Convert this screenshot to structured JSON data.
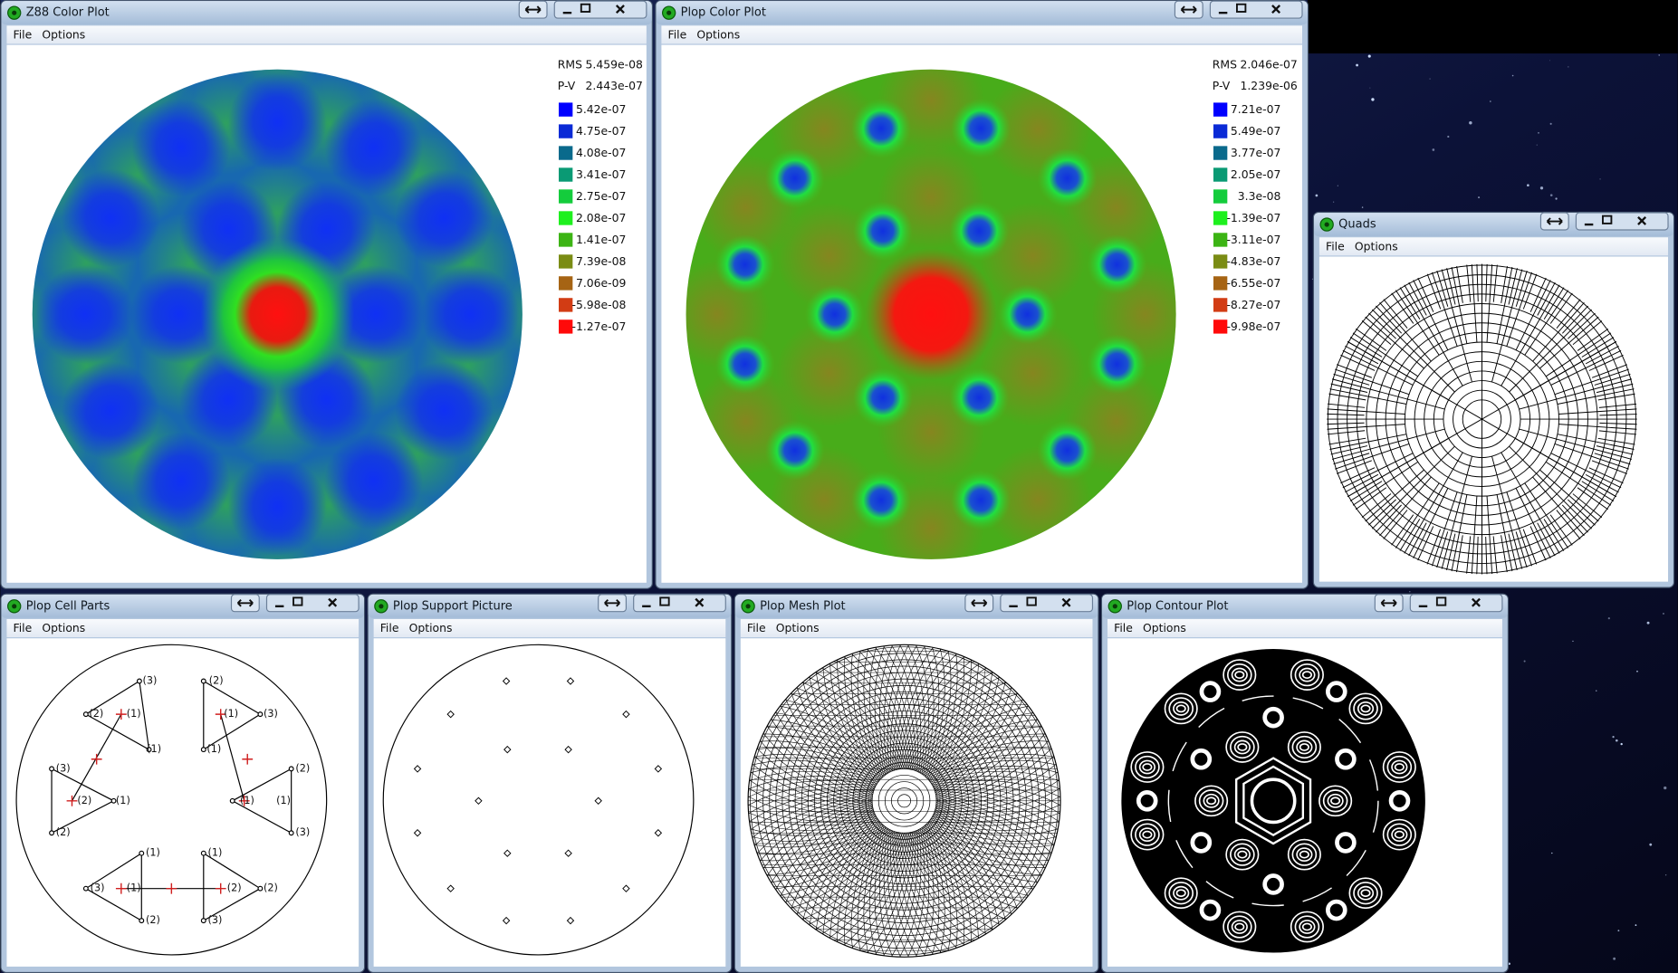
{
  "windows": [
    {
      "title": "Z88 Color Plot",
      "menu": [
        "File",
        "Options"
      ],
      "stats": [
        {
          "label": "RMS",
          "value": "5.459e-08"
        },
        {
          "label": "P-V",
          "value": "2.443e-07"
        }
      ],
      "legend": [
        {
          "label": "5.42e-07",
          "color": "#0000ff"
        },
        {
          "label": "4.75e-07",
          "color": "#0a2ad6"
        },
        {
          "label": "4.08e-07",
          "color": "#0a6a8c"
        },
        {
          "label": "3.41e-07",
          "color": "#0a9a74"
        },
        {
          "label": "2.75e-07",
          "color": "#14cc3c"
        },
        {
          "label": "2.08e-07",
          "color": "#1ef01e"
        },
        {
          "label": "1.41e-07",
          "color": "#3cb414"
        },
        {
          "label": "7.39e-08",
          "color": "#7a8c14"
        },
        {
          "label": "7.06e-09",
          "color": "#a66414"
        },
        {
          "label": "-5.98e-08",
          "color": "#d23c14"
        },
        {
          "label": "-1.27e-07",
          "color": "#ff0a0a"
        }
      ]
    },
    {
      "title": "Plop Color Plot",
      "menu": [
        "File",
        "Options"
      ],
      "stats": [
        {
          "label": "RMS",
          "value": "2.046e-07"
        },
        {
          "label": "P-V",
          "value": "1.239e-06"
        }
      ],
      "legend": [
        {
          "label": "7.21e-07",
          "color": "#0000ff"
        },
        {
          "label": "5.49e-07",
          "color": "#0a2ad6"
        },
        {
          "label": "3.77e-07",
          "color": "#0a6a8c"
        },
        {
          "label": "2.05e-07",
          "color": "#0a9a74"
        },
        {
          "label": "3.3e-08",
          "color": "#14cc3c"
        },
        {
          "label": "-1.39e-07",
          "color": "#1ef01e"
        },
        {
          "label": "-3.11e-07",
          "color": "#3cb414"
        },
        {
          "label": "-4.83e-07",
          "color": "#7a8c14"
        },
        {
          "label": "-6.55e-07",
          "color": "#a66414"
        },
        {
          "label": "-8.27e-07",
          "color": "#d23c14"
        },
        {
          "label": "-9.98e-07",
          "color": "#ff0a0a"
        }
      ]
    },
    {
      "title": "Quads",
      "menu": [
        "File",
        "Options"
      ]
    },
    {
      "title": "Plop Cell Parts",
      "menu": [
        "File",
        "Options"
      ],
      "labels": [
        "(3)",
        "(2)",
        "(1)",
        "(1)",
        "(2)",
        "(1)",
        "(3)",
        "(1)",
        "(3)",
        "(2)",
        "(1)",
        "(2)",
        "(1)",
        "(1)",
        "(3)",
        "(2)",
        "(1)",
        "(3)",
        "(1)",
        "(2)",
        "(1)",
        "(2)",
        "(2)",
        "(3)"
      ]
    },
    {
      "title": "Plop Support Picture",
      "menu": [
        "File",
        "Options"
      ]
    },
    {
      "title": "Plop Mesh Plot",
      "menu": [
        "File",
        "Options"
      ]
    },
    {
      "title": "Plop Contour Plot",
      "menu": [
        "File",
        "Options"
      ]
    }
  ]
}
